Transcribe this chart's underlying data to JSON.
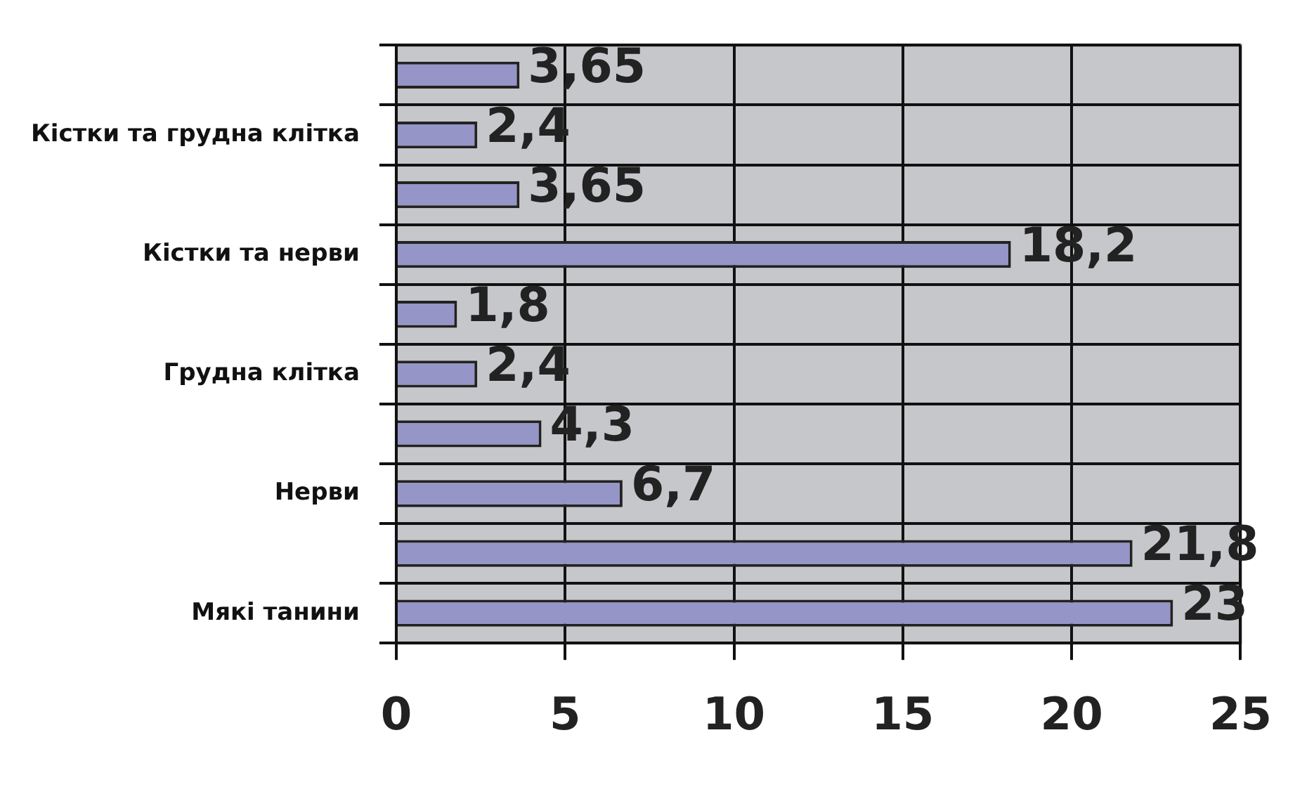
{
  "chart_data": {
    "type": "bar",
    "orientation": "horizontal",
    "categories": [
      null,
      "Кістки та грудна клітка",
      null,
      "Кістки та нерви",
      null,
      "Грудна клітка",
      null,
      "Нерви",
      null,
      "Мякі танини"
    ],
    "values": [
      3.65,
      2.4,
      3.65,
      18.2,
      1.8,
      2.4,
      4.3,
      6.7,
      21.8,
      23
    ],
    "value_labels": [
      "3,65",
      "2,4",
      "3,65",
      "18,2",
      "1,8",
      "2,4",
      "4,3",
      "6,7",
      "21,8",
      "23"
    ],
    "color": "#9595c8",
    "xlim": [
      0,
      25
    ],
    "xticks": [
      0,
      5,
      10,
      15,
      20,
      25
    ],
    "grid": true,
    "legend": false
  }
}
